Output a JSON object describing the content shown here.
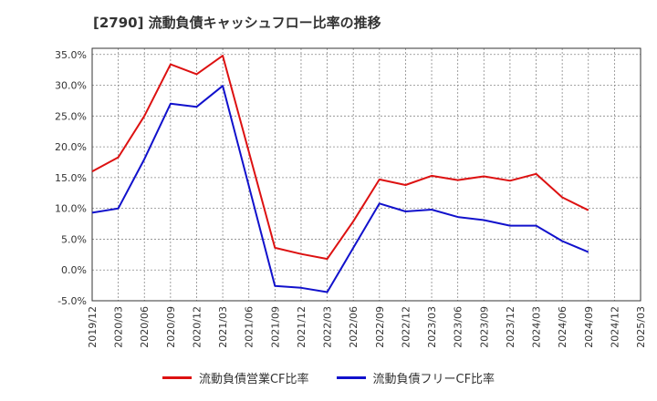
{
  "chart_data": {
    "type": "line",
    "title": "[2790]  流動負債キャッシュフロー比率の推移",
    "xlabel": "",
    "ylabel": "",
    "ylim": [
      -5,
      36
    ],
    "yticks": [
      35,
      30,
      25,
      20,
      15,
      10,
      5,
      0,
      -5
    ],
    "ytick_labels": [
      "35.0%",
      "30.0%",
      "25.0%",
      "20.0%",
      "15.0%",
      "10.0%",
      "5.0%",
      "0.0%",
      "-5.0%"
    ],
    "categories": [
      "2019/12",
      "2020/03",
      "2020/06",
      "2020/09",
      "2020/12",
      "2021/03",
      "2021/06",
      "2021/09",
      "2021/12",
      "2022/03",
      "2022/06",
      "2022/09",
      "2022/12",
      "2023/03",
      "2023/06",
      "2023/09",
      "2023/12",
      "2024/03",
      "2024/06",
      "2024/09",
      "2024/12",
      "2025/03"
    ],
    "grid": true,
    "legend_position": "bottom",
    "series": [
      {
        "name": "流動負債営業CF比率",
        "color": "#dd1111",
        "values": [
          16.0,
          18.3,
          25.0,
          33.4,
          31.8,
          34.8,
          null,
          3.6,
          2.6,
          1.8,
          7.9,
          14.7,
          13.8,
          15.3,
          14.6,
          15.2,
          14.5,
          15.6,
          11.8,
          9.7,
          null,
          null
        ]
      },
      {
        "name": "流動負債フリーCF比率",
        "color": "#1111cc",
        "values": [
          9.3,
          10.0,
          18.0,
          27.0,
          26.5,
          29.9,
          null,
          -2.6,
          -2.9,
          -3.6,
          3.6,
          10.8,
          9.5,
          9.8,
          8.6,
          8.1,
          7.2,
          7.2,
          4.7,
          2.9,
          null,
          null
        ]
      }
    ]
  }
}
